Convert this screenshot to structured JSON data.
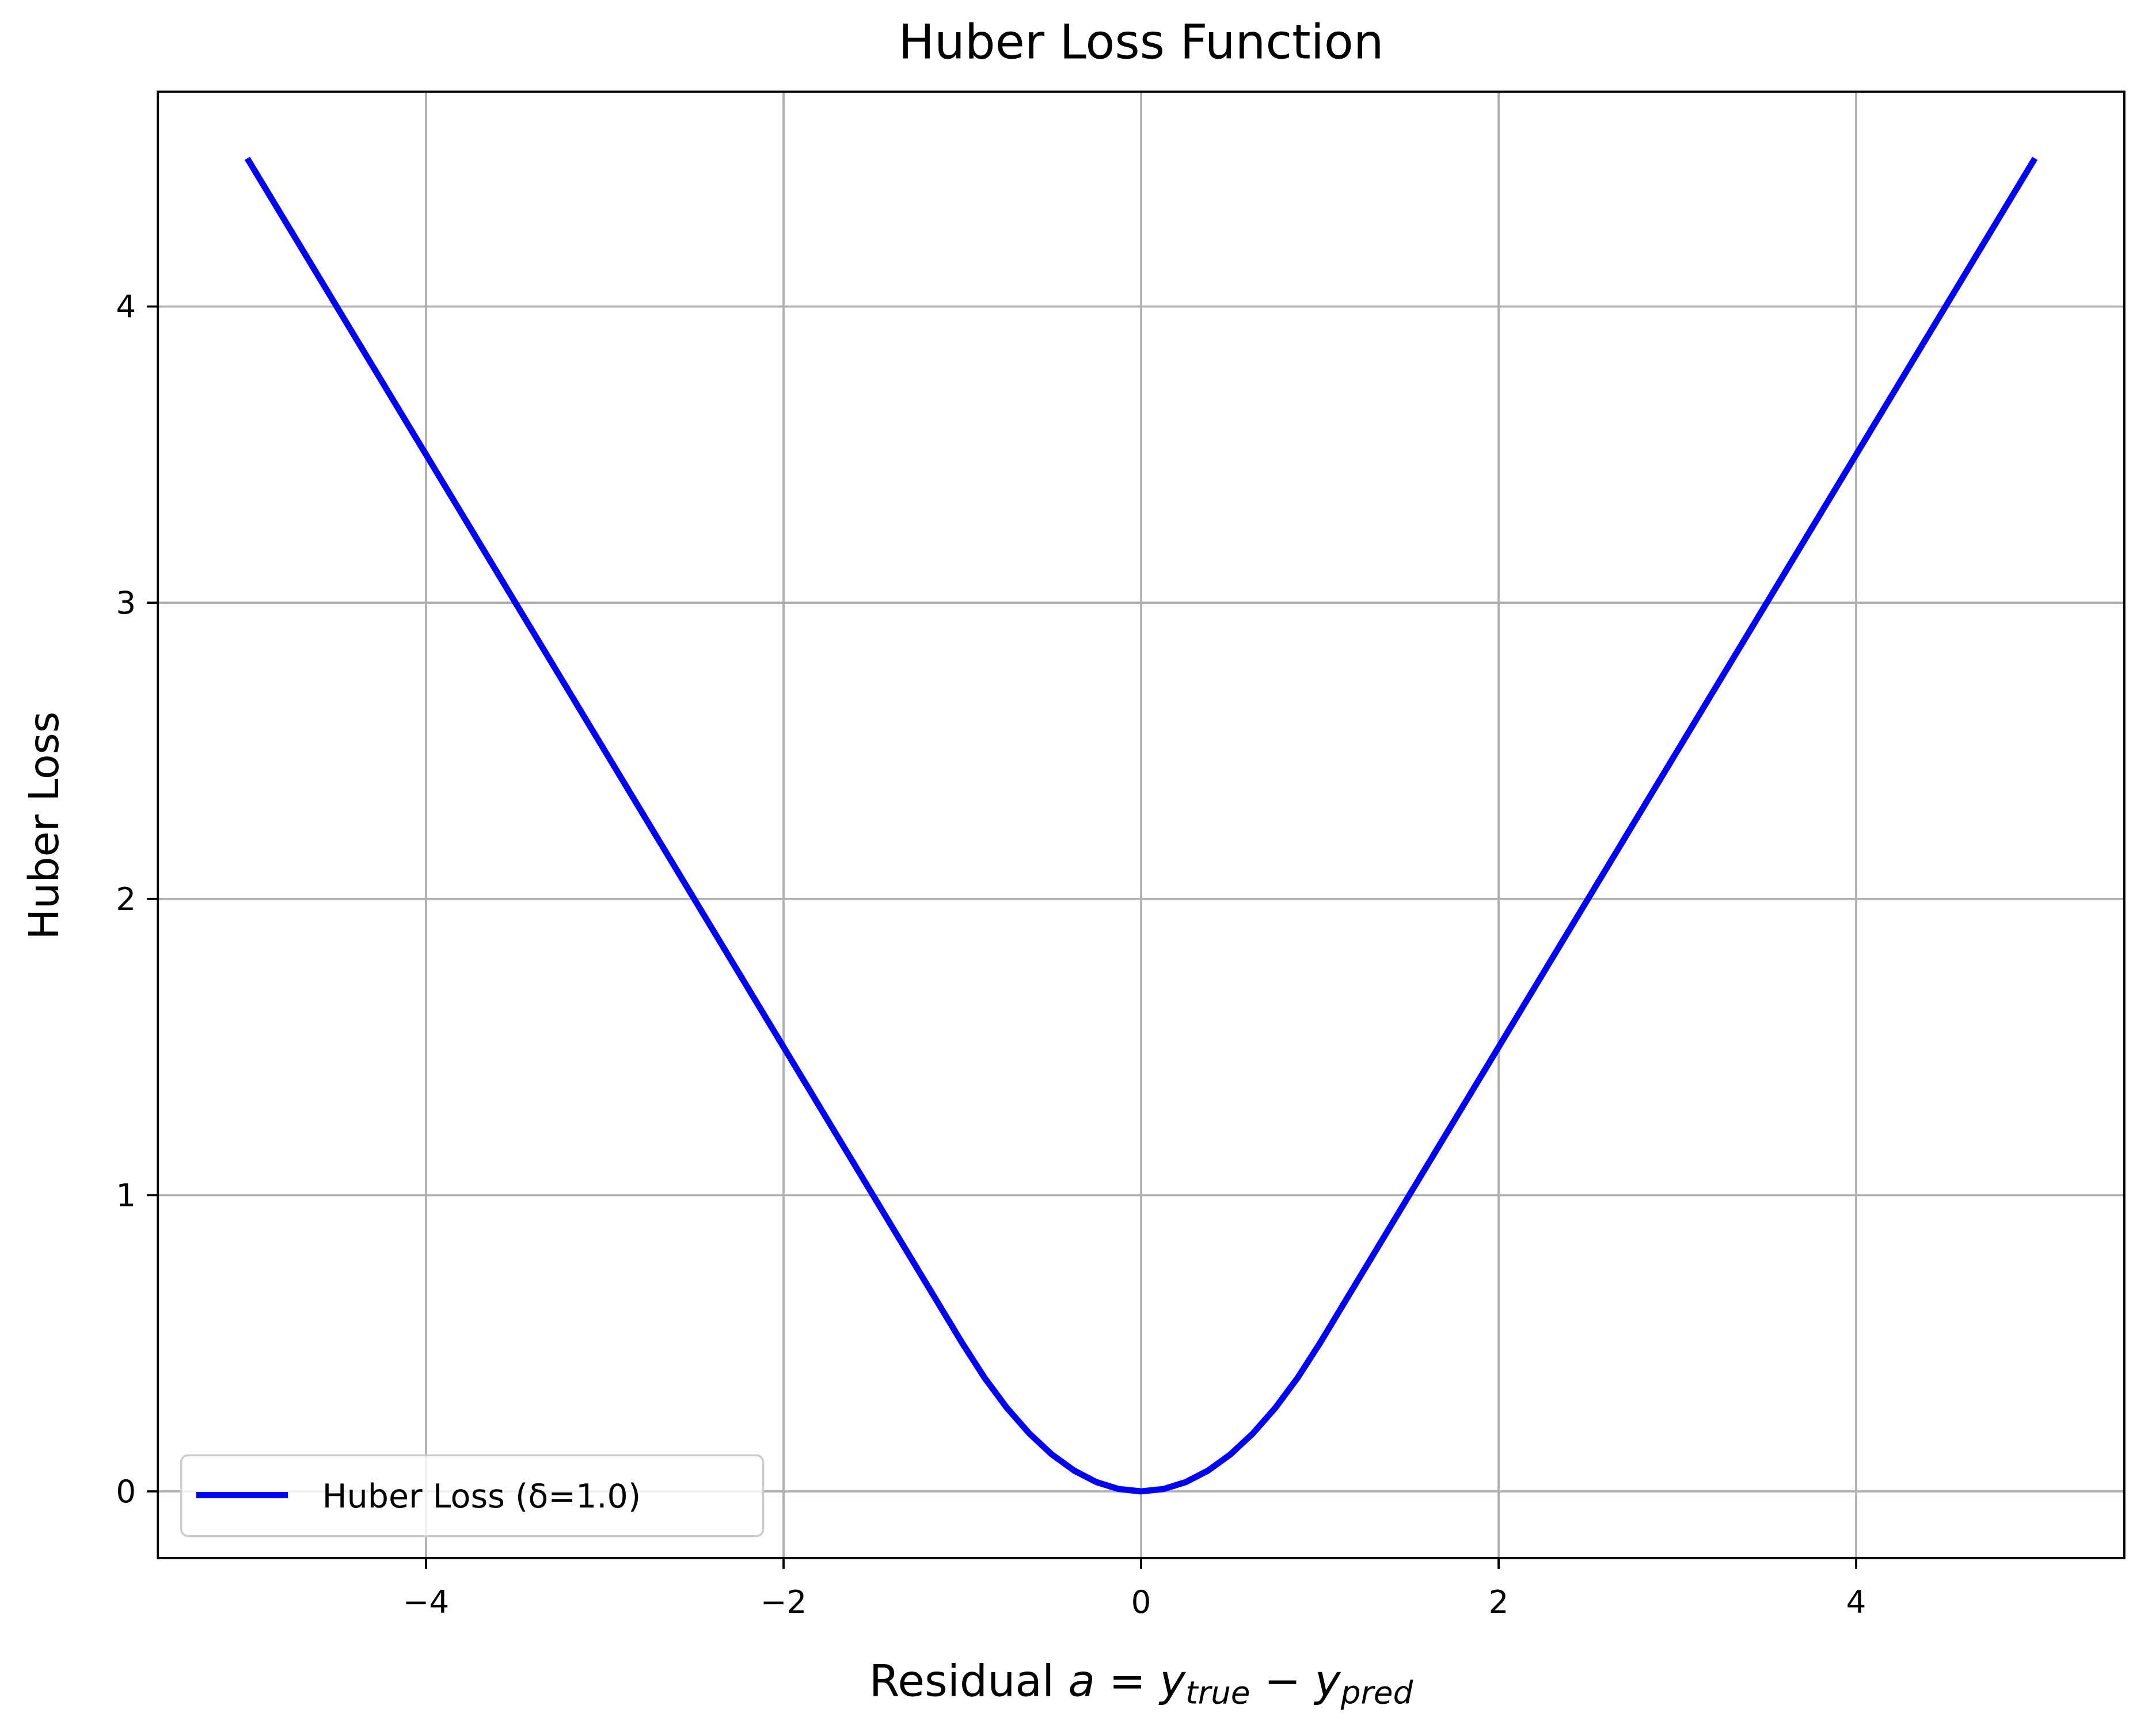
{
  "chart_data": {
    "type": "line",
    "title": "Huber Loss Function",
    "xlabel": [
      "Residual ",
      "a",
      " = ",
      "y",
      "true",
      " − ",
      "y",
      "pred"
    ],
    "ylabel": "Huber Loss",
    "x": [
      -5,
      -4.75,
      -4.5,
      -4.25,
      -4,
      -3.75,
      -3.5,
      -3.25,
      -3,
      -2.75,
      -2.5,
      -2.25,
      -2,
      -1.75,
      -1.5,
      -1.25,
      -1,
      -0.875,
      -0.75,
      -0.625,
      -0.5,
      -0.375,
      -0.25,
      -0.125,
      0,
      0.125,
      0.25,
      0.375,
      0.5,
      0.625,
      0.75,
      0.875,
      1,
      1.25,
      1.5,
      1.75,
      2,
      2.25,
      2.5,
      2.75,
      3,
      3.25,
      3.5,
      3.75,
      4,
      4.25,
      4.5,
      4.75,
      5
    ],
    "series": [
      {
        "name": "Huber Loss (δ=1.0)",
        "color": "#0000ff",
        "values": [
          4.5,
          4.25,
          4,
          3.75,
          3.5,
          3.25,
          3,
          2.75,
          2.5,
          2.25,
          2,
          1.75,
          1.5,
          1.25,
          1,
          0.75,
          0.5,
          0.3828125,
          0.28125,
          0.1953125,
          0.125,
          0.0703125,
          0.03125,
          0.0078125,
          0,
          0.0078125,
          0.03125,
          0.0703125,
          0.125,
          0.1953125,
          0.28125,
          0.3828125,
          0.5,
          0.75,
          1,
          1.25,
          1.5,
          1.75,
          2,
          2.25,
          2.5,
          2.75,
          3,
          3.25,
          3.5,
          3.75,
          4,
          4.25,
          4.5
        ]
      }
    ],
    "xlim": [
      -5.5,
      5.5
    ],
    "ylim": [
      -0.225,
      4.725
    ],
    "xticks": [
      {
        "value": -4,
        "label": "−4"
      },
      {
        "value": -2,
        "label": "−2"
      },
      0,
      2,
      4
    ],
    "yticks": [
      0,
      1,
      2,
      3,
      4
    ],
    "grid": true,
    "legend": "lower left"
  }
}
